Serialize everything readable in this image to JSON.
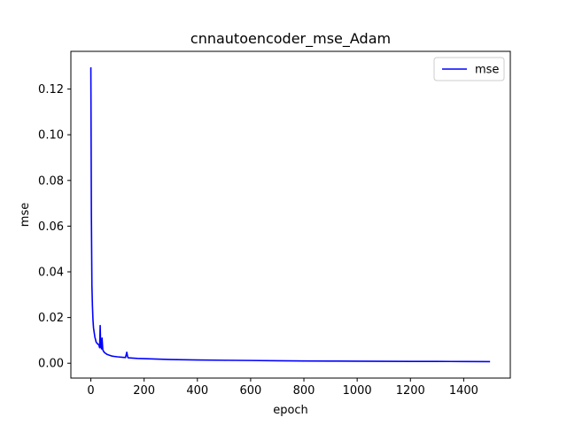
{
  "chart_data": {
    "type": "line",
    "title": "cnnautoencoder_mse_Adam",
    "xlabel": "epoch",
    "ylabel": "mse",
    "xlim": [
      -75,
      1575
    ],
    "ylim": [
      -0.0065,
      0.1365
    ],
    "xticks": [
      0,
      200,
      400,
      600,
      800,
      1000,
      1200,
      1400
    ],
    "xtick_labels": [
      "0",
      "200",
      "400",
      "600",
      "800",
      "1000",
      "1200",
      "1400"
    ],
    "yticks": [
      0.0,
      0.02,
      0.04,
      0.06,
      0.08,
      0.1,
      0.12
    ],
    "ytick_labels": [
      "0.00",
      "0.02",
      "0.04",
      "0.06",
      "0.08",
      "0.10",
      "0.12"
    ],
    "grid": false,
    "legend_position": "upper right",
    "series": [
      {
        "name": "mse",
        "color": "#0000ff",
        "x": [
          0,
          2,
          4,
          6,
          8,
          10,
          15,
          20,
          25,
          30,
          33,
          35,
          37,
          40,
          42,
          45,
          50,
          60,
          70,
          80,
          100,
          120,
          130,
          135,
          138,
          140,
          150,
          175,
          200,
          250,
          300,
          400,
          500,
          600,
          700,
          800,
          900,
          1000,
          1100,
          1200,
          1300,
          1400,
          1499
        ],
        "values": [
          0.1295,
          0.065,
          0.034,
          0.025,
          0.019,
          0.0155,
          0.0115,
          0.0092,
          0.0085,
          0.008,
          0.0068,
          0.0165,
          0.0075,
          0.0063,
          0.011,
          0.0058,
          0.0048,
          0.0039,
          0.0035,
          0.0031,
          0.0028,
          0.0026,
          0.0025,
          0.0048,
          0.0029,
          0.0024,
          0.0023,
          0.0021,
          0.002,
          0.0018,
          0.0016,
          0.0014,
          0.0013,
          0.0012,
          0.0011,
          0.001,
          0.00095,
          0.0009,
          0.00085,
          0.0008,
          0.00078,
          0.00075,
          0.0007
        ]
      }
    ]
  }
}
